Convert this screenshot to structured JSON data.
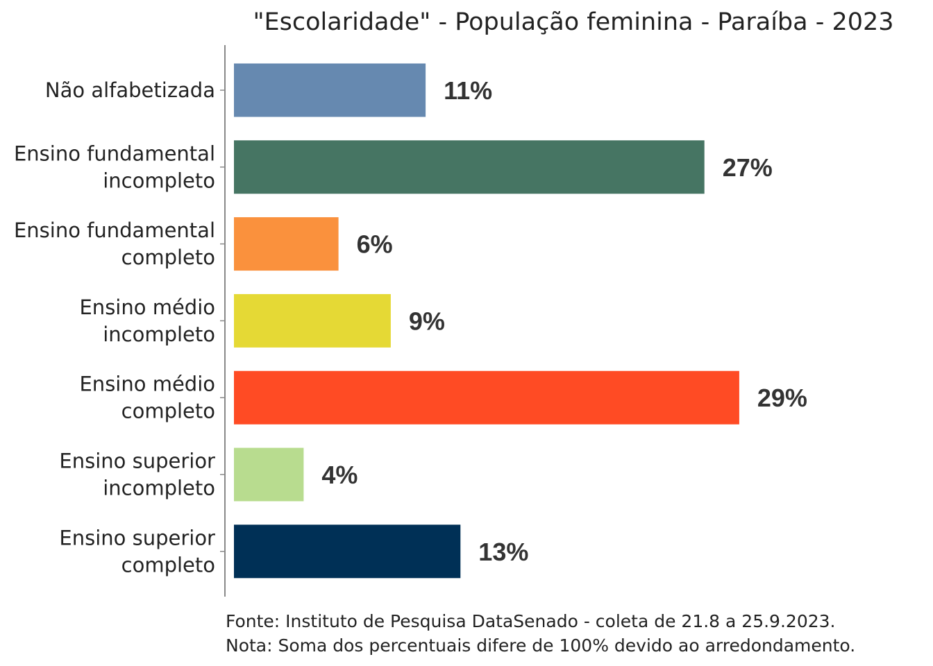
{
  "chart_data": {
    "type": "bar",
    "orientation": "horizontal",
    "title": "\"Escolaridade\" - População feminina - Paraíba - 2023",
    "categories": [
      [
        "Não alfabetizada"
      ],
      [
        "Ensino fundamental",
        "incompleto"
      ],
      [
        "Ensino fundamental",
        "completo"
      ],
      [
        "Ensino médio",
        "incompleto"
      ],
      [
        "Ensino médio",
        "completo"
      ],
      [
        "Ensino superior",
        "incompleto"
      ],
      [
        "Ensino superior",
        "completo"
      ]
    ],
    "values": [
      11,
      27,
      6,
      9,
      29,
      4,
      13
    ],
    "value_labels": [
      "11%",
      "27%",
      "6%",
      "9%",
      "29%",
      "4%",
      "13%"
    ],
    "colors": [
      "#6689B0",
      "#467563",
      "#FA913D",
      "#E5D935",
      "#FF4B24",
      "#B8DC8F",
      "#003056"
    ],
    "xlabel": "",
    "ylabel": "",
    "xlim": [
      0,
      30
    ],
    "grid": false
  },
  "notes": [
    "Fonte: Instituto de Pesquisa DataSenado - coleta de 21.8 a 25.9.2023.",
    "Nota: Soma dos percentuais difere de 100% devido ao arredondamento."
  ]
}
